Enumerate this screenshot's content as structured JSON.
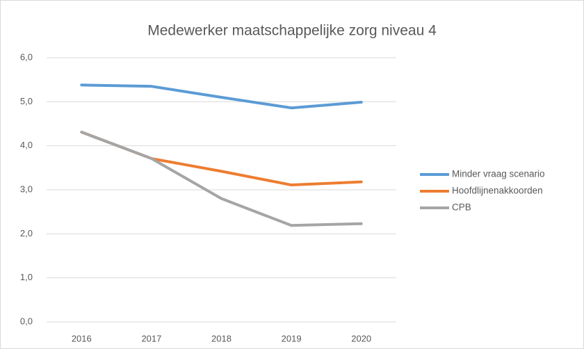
{
  "chart_data": {
    "type": "line",
    "title": "Medewerker maatschappelijke zorg niveau 4",
    "categories": [
      "2016",
      "2017",
      "2018",
      "2019",
      "2020"
    ],
    "series": [
      {
        "name": "Minder vraag scenario",
        "color": "#5b9bd5",
        "values": [
          5.38,
          5.35,
          5.1,
          4.86,
          4.99
        ]
      },
      {
        "name": "Hoofdlijnenakkoorden",
        "color": "#ed7d31",
        "values": [
          4.31,
          3.71,
          3.42,
          3.11,
          3.18
        ]
      },
      {
        "name": "CPB",
        "color": "#a5a5a5",
        "values": [
          4.31,
          3.71,
          2.8,
          2.19,
          2.23
        ]
      }
    ],
    "ylim": [
      0,
      6
    ],
    "yticks": [
      {
        "value": 0,
        "label": "0,0"
      },
      {
        "value": 1,
        "label": "1,0"
      },
      {
        "value": 2,
        "label": "2,0"
      },
      {
        "value": 3,
        "label": "3,0"
      },
      {
        "value": 4,
        "label": "4,0"
      },
      {
        "value": 5,
        "label": "5,0"
      },
      {
        "value": 6,
        "label": "6,0"
      }
    ],
    "grid": true,
    "legend": "right"
  }
}
